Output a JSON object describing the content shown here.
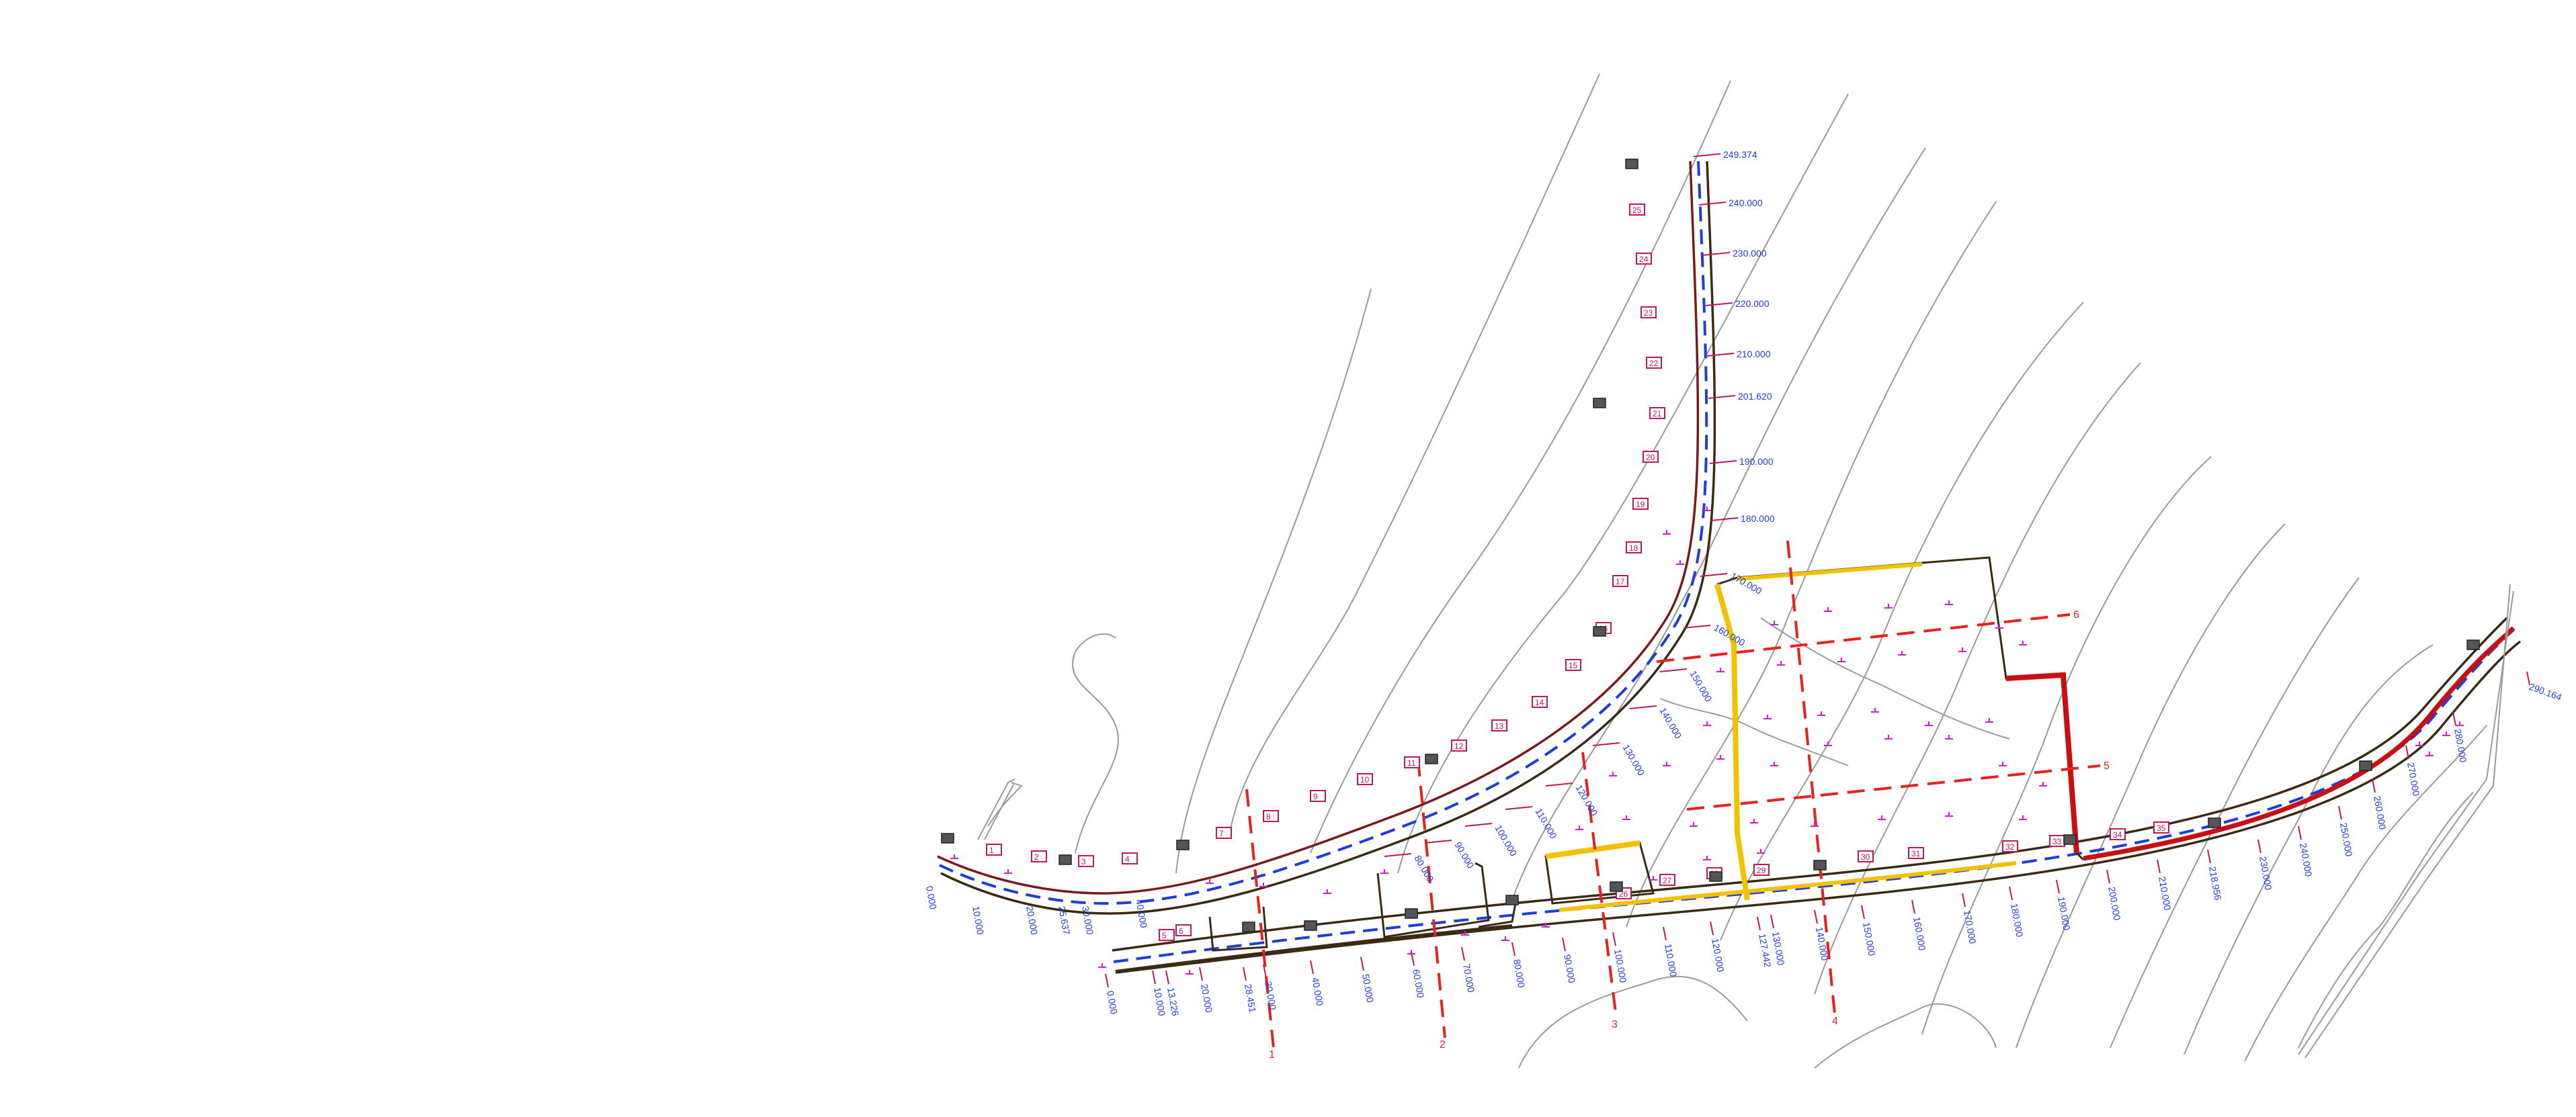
{
  "colors": {
    "background": "#ffffff",
    "contour": "#9a9a9a",
    "road_edge": "#3b2a14",
    "road_shoulder": "#7a1a1a",
    "centerline": "#1f3ddb",
    "chainage_text": "#1f3ddb",
    "section_line": "#e8201f",
    "platform_fill_yellow": "#f2c200",
    "platform_fill_red": "#c81010",
    "station_box": "#c2185b",
    "marker_gray": "#555555",
    "spot_mark": "#d01bd0"
  },
  "chainage_right_branch": [
    "249.374",
    "240.000",
    "230.000",
    "220.000",
    "210.000",
    "201.620",
    "190.000",
    "180.000",
    "170.000",
    "160.000",
    "150.000",
    "140.000",
    "130.000",
    "120.000",
    "110.000",
    "100.000",
    "90.000",
    "80.000"
  ],
  "chainage_main_road": [
    "0.000",
    "10.000",
    "13.226",
    "20.000",
    "28.451",
    "30.000",
    "40.000",
    "50.000",
    "60.000",
    "70.000",
    "80.000",
    "90.000",
    "100.000",
    "110.000",
    "120.000",
    "127.442",
    "130.000",
    "140.000",
    "150.000",
    "160.000",
    "170.000",
    "180.000",
    "190.000",
    "200.000",
    "210.000",
    "218.956",
    "230.000",
    "240.000",
    "250.000",
    "260.000",
    "270.000",
    "280.000",
    "290.164"
  ],
  "chainage_lower_left": [
    "0.000",
    "10.000",
    "20.000",
    "25.637",
    "30.000",
    "40.000"
  ],
  "station_numbers": [
    "1",
    "2",
    "3",
    "4",
    "5",
    "6",
    "7",
    "8",
    "9",
    "10",
    "11",
    "12",
    "13",
    "14",
    "15",
    "16",
    "17",
    "18",
    "19",
    "20",
    "21",
    "22",
    "23",
    "24",
    "25",
    "26",
    "27",
    "28",
    "29",
    "30",
    "31",
    "32",
    "33",
    "34",
    "35"
  ],
  "section_markers": [
    "1",
    "2",
    "3",
    "4",
    "5",
    "6"
  ]
}
